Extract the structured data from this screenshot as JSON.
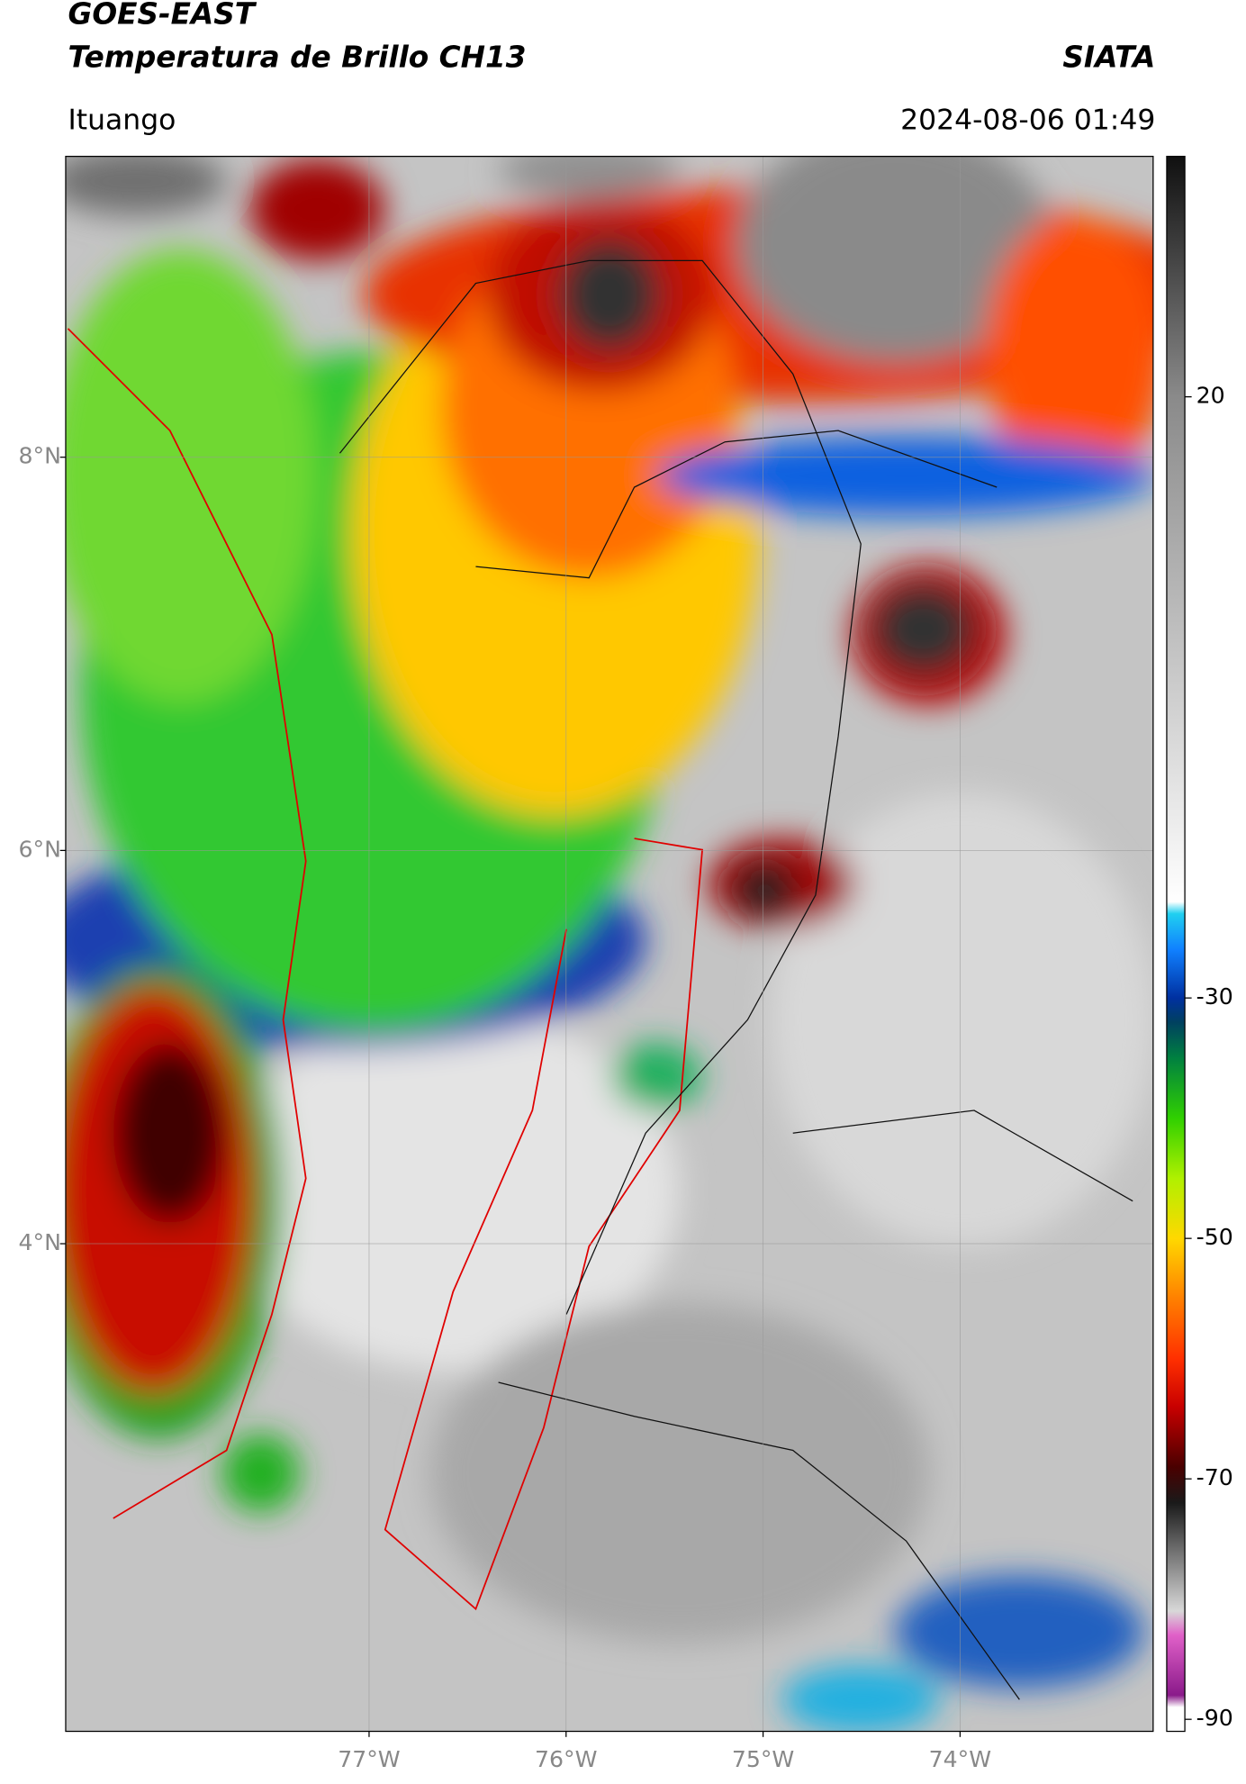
{
  "header": {
    "title": "GOES-EAST",
    "subtitle": "Temperatura de Brillo CH13",
    "org": "SIATA",
    "location": "Ituango",
    "datetime": "2024-08-06 01:49"
  },
  "map": {
    "xlim": [
      -78.54,
      -73.02
    ],
    "ylim": [
      1.52,
      9.53
    ],
    "grid": true,
    "xticks": [
      {
        "value": -77,
        "label": "77°W"
      },
      {
        "value": -76,
        "label": "76°W"
      },
      {
        "value": -75,
        "label": "75°W"
      },
      {
        "value": -74,
        "label": "74°W"
      }
    ],
    "yticks": [
      {
        "value": 4,
        "label": "4°N"
      },
      {
        "value": 6,
        "label": "6°N"
      },
      {
        "value": 8,
        "label": "8°N"
      }
    ]
  },
  "colorbar": {
    "lim": [
      -91,
      40
    ],
    "ticks": [
      20,
      -30,
      -50,
      -70,
      -90
    ],
    "stops": [
      {
        "value": -91,
        "color": "#ffffff"
      },
      {
        "value": -89,
        "color": "#ffffff"
      },
      {
        "value": -88,
        "color": "#8a1a8a"
      },
      {
        "value": -83,
        "color": "#e060c8"
      },
      {
        "value": -81,
        "color": "#d8d8d8"
      },
      {
        "value": -76,
        "color": "#707070"
      },
      {
        "value": -72,
        "color": "#1a1a1a"
      },
      {
        "value": -69,
        "color": "#4a0000"
      },
      {
        "value": -64,
        "color": "#c80000"
      },
      {
        "value": -60,
        "color": "#ff3000"
      },
      {
        "value": -55,
        "color": "#ff8000"
      },
      {
        "value": -50,
        "color": "#ffd800"
      },
      {
        "value": -45,
        "color": "#b0f000"
      },
      {
        "value": -40,
        "color": "#30d000"
      },
      {
        "value": -35,
        "color": "#008040"
      },
      {
        "value": -32,
        "color": "#004060"
      },
      {
        "value": -30,
        "color": "#0030a0"
      },
      {
        "value": -26,
        "color": "#1080ff"
      },
      {
        "value": -23,
        "color": "#20d0f0"
      },
      {
        "value": -22,
        "color": "#ffffff"
      },
      {
        "value": 0,
        "color": "#c0c0c0"
      },
      {
        "value": 20,
        "color": "#8a8a8a"
      },
      {
        "value": 40,
        "color": "#101010"
      }
    ]
  }
}
